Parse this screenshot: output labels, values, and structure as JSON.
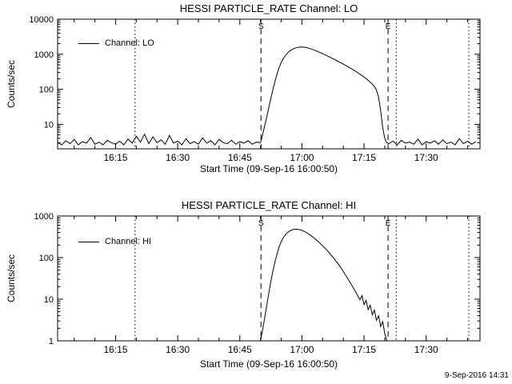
{
  "page": {
    "background": "#ffffff",
    "foreground": "#000000",
    "timestamp": "9-Sep-2016 14:31"
  },
  "chart_data": [
    {
      "type": "line",
      "title": "HESSI PARTICLE_RATE Channel: LO",
      "xlabel": "Start Time (09-Sep-16 16:00:50)",
      "ylabel": "Counts/sec",
      "legend": "Channel: LO",
      "grid": false,
      "line_color": "#000000",
      "x_axis": {
        "unit": "minutes after 16:00 UT",
        "lim": [
          1,
          103
        ],
        "minor_step": 5,
        "ticks": [
          {
            "x": 15,
            "label": "16:15"
          },
          {
            "x": 30,
            "label": "16:30"
          },
          {
            "x": 45,
            "label": "16:45"
          },
          {
            "x": 60,
            "label": "17:00"
          },
          {
            "x": 75,
            "label": "17:15"
          },
          {
            "x": 90,
            "label": "17:30"
          }
        ]
      },
      "y_axis": {
        "scale": "log",
        "lim": [
          2,
          10000
        ],
        "ticks": [
          10,
          100,
          1000,
          10000
        ]
      },
      "vlines": [
        {
          "x": 19.7,
          "style": "dotted"
        },
        {
          "x": 50.1,
          "style": "dashed",
          "label": "S"
        },
        {
          "x": 80.8,
          "style": "dashed",
          "label": "E"
        },
        {
          "x": 82.8,
          "style": "dotted"
        },
        {
          "x": 100.3,
          "style": "dotted"
        }
      ],
      "series": [
        {
          "name": "Channel: LO",
          "points": [
            [
              1,
              3.0
            ],
            [
              2,
              2.6
            ],
            [
              3,
              3.4
            ],
            [
              4,
              2.8
            ],
            [
              5,
              3.7
            ],
            [
              6,
              2.6
            ],
            [
              7,
              3.2
            ],
            [
              8,
              2.9
            ],
            [
              9,
              4.2
            ],
            [
              10,
              2.7
            ],
            [
              11,
              3.1
            ],
            [
              12,
              2.6
            ],
            [
              13,
              3.5
            ],
            [
              14,
              3.0
            ],
            [
              15,
              2.7
            ],
            [
              16,
              3.3
            ],
            [
              17,
              2.6
            ],
            [
              18,
              3.8
            ],
            [
              19,
              2.9
            ],
            [
              20,
              4.6
            ],
            [
              21,
              3.1
            ],
            [
              22,
              5.2
            ],
            [
              23,
              2.8
            ],
            [
              24,
              4.4
            ],
            [
              25,
              3.0
            ],
            [
              26,
              3.6
            ],
            [
              27,
              2.7
            ],
            [
              28,
              4.8
            ],
            [
              29,
              2.9
            ],
            [
              30,
              3.3
            ],
            [
              31,
              2.6
            ],
            [
              32,
              3.9
            ],
            [
              33,
              2.8
            ],
            [
              34,
              3.2
            ],
            [
              35,
              2.7
            ],
            [
              36,
              4.1
            ],
            [
              37,
              2.9
            ],
            [
              38,
              3.4
            ],
            [
              39,
              2.6
            ],
            [
              40,
              3.7
            ],
            [
              41,
              3.0
            ],
            [
              42,
              2.8
            ],
            [
              43,
              3.5
            ],
            [
              44,
              2.7
            ],
            [
              45,
              3.2
            ],
            [
              46,
              2.9
            ],
            [
              47,
              3.4
            ],
            [
              48,
              2.7
            ],
            [
              49,
              3.1
            ],
            [
              50,
              3.0
            ],
            [
              50.5,
              5
            ],
            [
              51,
              9
            ],
            [
              51.5,
              16
            ],
            [
              52,
              30
            ],
            [
              52.5,
              55
            ],
            [
              53,
              100
            ],
            [
              53.5,
              170
            ],
            [
              54,
              280
            ],
            [
              54.5,
              420
            ],
            [
              55,
              580
            ],
            [
              55.5,
              750
            ],
            [
              56,
              920
            ],
            [
              56.5,
              1080
            ],
            [
              57,
              1220
            ],
            [
              57.5,
              1340
            ],
            [
              58,
              1440
            ],
            [
              58.5,
              1520
            ],
            [
              59,
              1570
            ],
            [
              59.5,
              1600
            ],
            [
              60,
              1605
            ],
            [
              60.5,
              1590
            ],
            [
              61,
              1555
            ],
            [
              61.5,
              1505
            ],
            [
              62,
              1445
            ],
            [
              62.5,
              1380
            ],
            [
              63,
              1310
            ],
            [
              63.5,
              1240
            ],
            [
              64,
              1170
            ],
            [
              64.5,
              1100
            ],
            [
              65,
              1035
            ],
            [
              65.5,
              970
            ],
            [
              66,
              910
            ],
            [
              66.5,
              852
            ],
            [
              67,
              797
            ],
            [
              67.5,
              745
            ],
            [
              68,
              695
            ],
            [
              68.5,
              648
            ],
            [
              69,
              604
            ],
            [
              69.5,
              562
            ],
            [
              70,
              522
            ],
            [
              70.5,
              484
            ],
            [
              71,
              448
            ],
            [
              71.5,
              414
            ],
            [
              72,
              382
            ],
            [
              72.5,
              352
            ],
            [
              73,
              323
            ],
            [
              73.5,
              296
            ],
            [
              74,
              270
            ],
            [
              74.5,
              246
            ],
            [
              75,
              223
            ],
            [
              75.5,
              201
            ],
            [
              76,
              180
            ],
            [
              76.5,
              160
            ],
            [
              77,
              141
            ],
            [
              77.5,
              120
            ],
            [
              78,
              95
            ],
            [
              78.5,
              60
            ],
            [
              79,
              25
            ],
            [
              79.5,
              8
            ],
            [
              80,
              4
            ],
            [
              80.5,
              3.0
            ],
            [
              81,
              2.8
            ],
            [
              82,
              3.3
            ],
            [
              83,
              2.6
            ],
            [
              84,
              3.5
            ],
            [
              85,
              2.9
            ],
            [
              86,
              3.1
            ],
            [
              87,
              2.7
            ],
            [
              88,
              3.8
            ],
            [
              89,
              2.6
            ],
            [
              90,
              3.2
            ],
            [
              91,
              2.9
            ],
            [
              92,
              3.4
            ],
            [
              93,
              2.7
            ],
            [
              94,
              3.6
            ],
            [
              95,
              2.8
            ],
            [
              96,
              3.1
            ],
            [
              97,
              2.6
            ],
            [
              98,
              3.9
            ],
            [
              99,
              2.8
            ],
            [
              100,
              3.3
            ],
            [
              101,
              2.7
            ],
            [
              102,
              3.2
            ]
          ]
        }
      ]
    },
    {
      "type": "line",
      "title": "HESSI PARTICLE_RATE Channel: HI",
      "xlabel": "Start Time (09-Sep-16 16:00:50)",
      "ylabel": "Counts/sec",
      "legend": "Channel: HI",
      "grid": false,
      "line_color": "#000000",
      "x_axis": {
        "unit": "minutes after 16:00 UT",
        "lim": [
          1,
          103
        ],
        "minor_step": 5,
        "ticks": [
          {
            "x": 15,
            "label": "16:15"
          },
          {
            "x": 30,
            "label": "16:30"
          },
          {
            "x": 45,
            "label": "16:45"
          },
          {
            "x": 60,
            "label": "17:00"
          },
          {
            "x": 75,
            "label": "17:15"
          },
          {
            "x": 90,
            "label": "17:30"
          }
        ]
      },
      "y_axis": {
        "scale": "log",
        "lim": [
          1,
          1000
        ],
        "ticks": [
          1,
          10,
          100,
          1000
        ]
      },
      "vlines": [
        {
          "x": 19.7,
          "style": "dotted"
        },
        {
          "x": 50.1,
          "style": "dashed",
          "label": "S"
        },
        {
          "x": 80.8,
          "style": "dashed",
          "label": "E"
        },
        {
          "x": 82.8,
          "style": "dotted"
        },
        {
          "x": 100.3,
          "style": "dotted"
        }
      ],
      "series": [
        {
          "name": "Channel: HI",
          "points": [
            [
              50,
              1.0
            ],
            [
              50.5,
              1.8
            ],
            [
              51,
              3.5
            ],
            [
              51.5,
              7
            ],
            [
              52,
              14
            ],
            [
              52.5,
              27
            ],
            [
              53,
              48
            ],
            [
              53.5,
              80
            ],
            [
              54,
              125
            ],
            [
              54.5,
              180
            ],
            [
              55,
              240
            ],
            [
              55.5,
              300
            ],
            [
              56,
              355
            ],
            [
              56.5,
              400
            ],
            [
              57,
              435
            ],
            [
              57.5,
              460
            ],
            [
              58,
              475
            ],
            [
              58.5,
              482
            ],
            [
              59,
              480
            ],
            [
              59.5,
              470
            ],
            [
              60,
              452
            ],
            [
              60.5,
              430
            ],
            [
              61,
              404
            ],
            [
              61.5,
              376
            ],
            [
              62,
              348
            ],
            [
              62.5,
              320
            ],
            [
              63,
              292
            ],
            [
              63.5,
              265
            ],
            [
              64,
              240
            ],
            [
              64.5,
              216
            ],
            [
              65,
              193
            ],
            [
              65.5,
              172
            ],
            [
              66,
              152
            ],
            [
              66.5,
              134
            ],
            [
              67,
              117
            ],
            [
              67.5,
              102
            ],
            [
              68,
              88
            ],
            [
              68.5,
              76
            ],
            [
              69,
              65
            ],
            [
              69.5,
              55
            ],
            [
              70,
              46
            ],
            [
              70.5,
              38.5
            ],
            [
              71,
              32
            ],
            [
              71.5,
              26.5
            ],
            [
              72,
              22
            ],
            [
              72.5,
              18
            ],
            [
              73,
              14.8
            ],
            [
              73.5,
              12
            ],
            [
              74,
              9.7
            ],
            [
              74.5,
              12.2
            ],
            [
              75,
              7.4
            ],
            [
              75.5,
              9.4
            ],
            [
              76,
              5.6
            ],
            [
              76.5,
              7.2
            ],
            [
              77,
              4.2
            ],
            [
              77.5,
              5.5
            ],
            [
              78,
              3.1
            ],
            [
              78.5,
              4
            ],
            [
              79,
              2.2
            ],
            [
              79.5,
              2.9
            ],
            [
              80,
              1.5
            ],
            [
              80.5,
              1.0
            ]
          ]
        }
      ]
    }
  ]
}
